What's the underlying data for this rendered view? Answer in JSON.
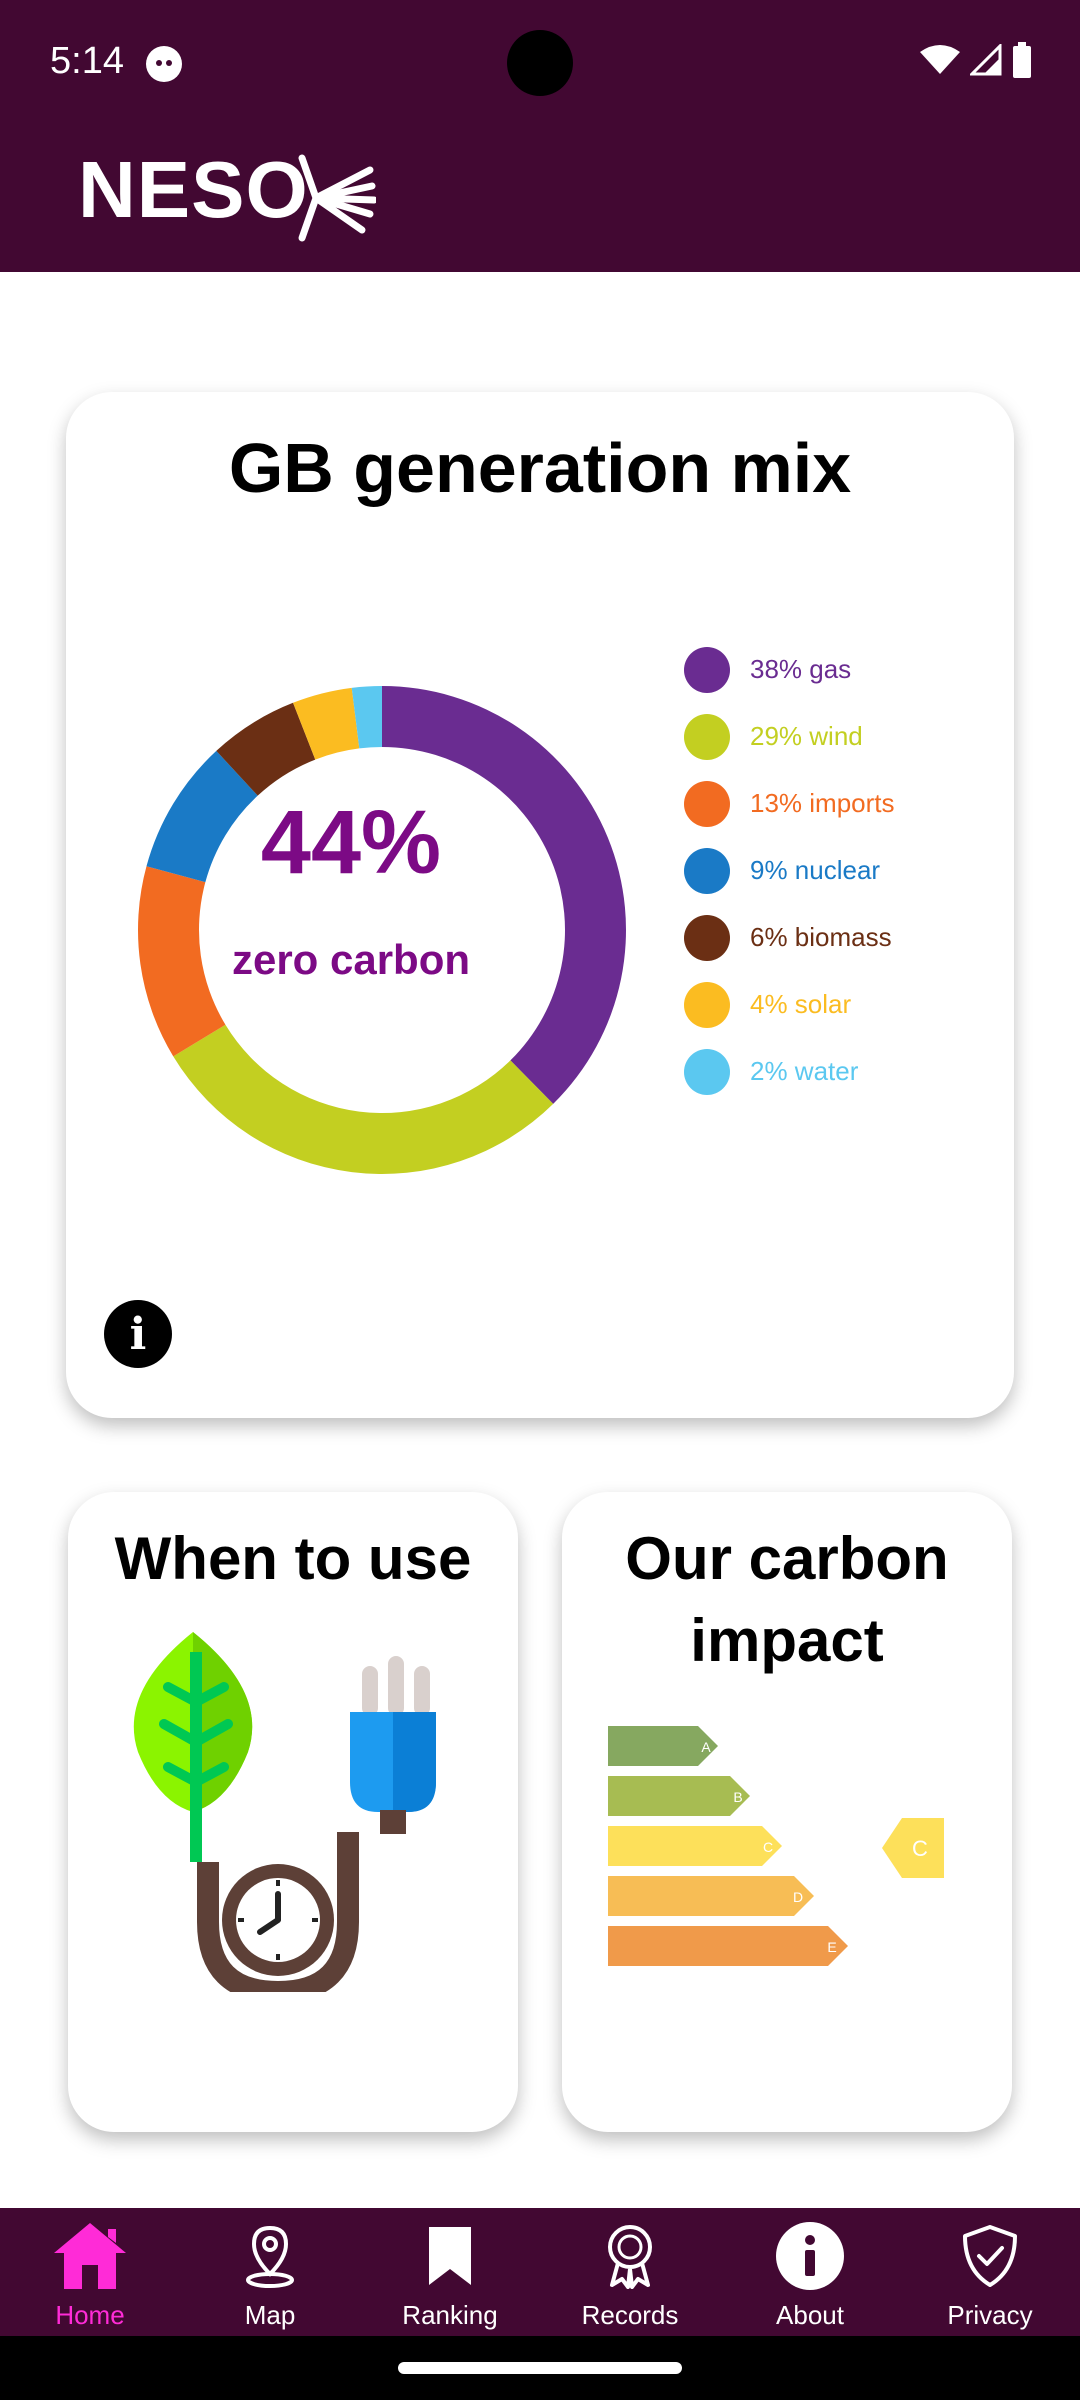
{
  "status_bar": {
    "time": "5:14"
  },
  "header": {
    "logo_text": "NESO"
  },
  "generation_mix": {
    "title": "GB generation mix",
    "center_value": "44%",
    "center_label": "zero carbon",
    "legend": [
      {
        "label": "38% gas",
        "color": "#6a2c91"
      },
      {
        "label": "29% wind",
        "color": "#c3cf21"
      },
      {
        "label": "13% imports",
        "color": "#f26b21"
      },
      {
        "label": "9% nuclear",
        "color": "#1a7ac6"
      },
      {
        "label": "6% biomass",
        "color": "#6b2f14"
      },
      {
        "label": "4% solar",
        "color": "#fbbc21"
      },
      {
        "label": "2% water",
        "color": "#5bc8f0"
      }
    ],
    "info_icon": "info-icon"
  },
  "chart_data": {
    "type": "pie",
    "categories": [
      "gas",
      "wind",
      "imports",
      "nuclear",
      "biomass",
      "solar",
      "water"
    ],
    "values": [
      38,
      29,
      13,
      9,
      6,
      4,
      2
    ],
    "colors": [
      "#6a2c91",
      "#c3cf21",
      "#f26b21",
      "#1a7ac6",
      "#6b2f14",
      "#fbbc21",
      "#5bc8f0"
    ],
    "title": "GB generation mix",
    "legend": "right"
  },
  "cards": {
    "when_to_use": {
      "title": "When to use",
      "icon": "leaf-plug-clock-icon"
    },
    "carbon_impact": {
      "title": "Our carbon impact",
      "icon": "energy-rating-icon",
      "bars": [
        "A",
        "B",
        "C",
        "D",
        "E"
      ],
      "rating": "C"
    }
  },
  "nav": {
    "items": [
      {
        "label": "Home",
        "icon": "home-icon"
      },
      {
        "label": "Map",
        "icon": "map-pin-icon"
      },
      {
        "label": "Ranking",
        "icon": "bookmark-icon"
      },
      {
        "label": "Records",
        "icon": "award-icon"
      },
      {
        "label": "About",
        "icon": "info-icon"
      },
      {
        "label": "Privacy",
        "icon": "shield-check-icon"
      }
    ],
    "active_color": "#ff2bd7"
  }
}
